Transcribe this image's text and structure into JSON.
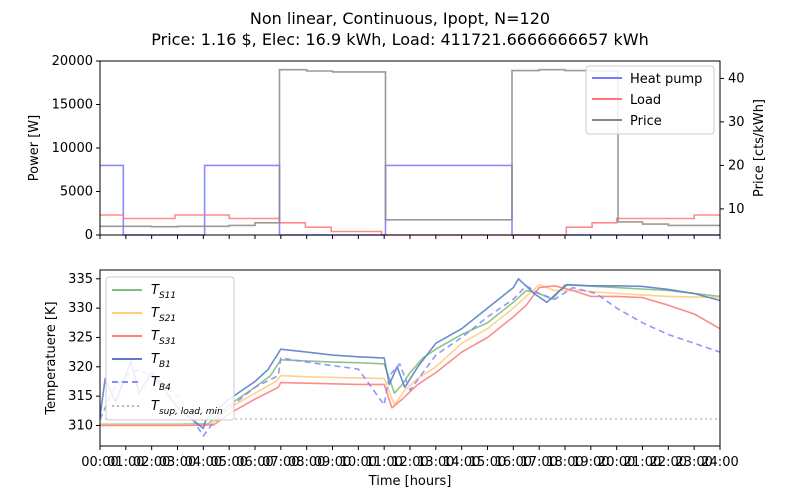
{
  "figure": {
    "title_line1": "Non linear, Continuous, Ipopt, N=120",
    "title_line2": "Price: 1.16 $, Elec: 16.9 kWh, Load: 411721.6666666657 kWh"
  },
  "chart_data": [
    {
      "type": "line",
      "ylabel": "Power [W]",
      "y2label": "Price [cts/kWh]",
      "ylim": [
        0,
        20000
      ],
      "y2lim": [
        4,
        44
      ],
      "xlim": [
        0,
        24
      ],
      "yticks": [
        "0",
        "5000",
        "10000",
        "15000",
        "20000"
      ],
      "y2ticks": [
        "10",
        "20",
        "30",
        "40"
      ],
      "grid": false,
      "legend_position": "top-right",
      "series": [
        {
          "name": "Heat pump",
          "color": "#7777ff",
          "axis": "left",
          "points": [
            [
              0,
              8000
            ],
            [
              0.9,
              8000
            ],
            [
              0.9,
              0
            ],
            [
              4.05,
              0
            ],
            [
              4.05,
              8000
            ],
            [
              6.95,
              8000
            ],
            [
              6.95,
              0
            ],
            [
              11.05,
              0
            ],
            [
              11.05,
              8000
            ],
            [
              15.95,
              8000
            ],
            [
              15.95,
              0
            ],
            [
              24,
              0
            ]
          ]
        },
        {
          "name": "Load",
          "color": "#ff7777",
          "axis": "left",
          "points": [
            [
              0,
              2300
            ],
            [
              0.9,
              2300
            ],
            [
              0.9,
              1900
            ],
            [
              2.9,
              1900
            ],
            [
              2.9,
              2300
            ],
            [
              5.0,
              2300
            ],
            [
              5.0,
              1900
            ],
            [
              6.95,
              1900
            ],
            [
              6.95,
              1400
            ],
            [
              7.95,
              1400
            ],
            [
              7.95,
              900
            ],
            [
              8.95,
              900
            ],
            [
              8.95,
              400
            ],
            [
              10.9,
              400
            ],
            [
              10.9,
              0
            ],
            [
              18.05,
              0
            ],
            [
              18.05,
              900
            ],
            [
              19.05,
              900
            ],
            [
              19.05,
              1400
            ],
            [
              20.0,
              1400
            ],
            [
              20.0,
              1900
            ],
            [
              23.0,
              1900
            ],
            [
              23.0,
              2300
            ],
            [
              24,
              2300
            ]
          ]
        },
        {
          "name": "Price",
          "color": "#888888",
          "axis": "right",
          "points": [
            [
              0,
              6.0
            ],
            [
              2.0,
              6.0
            ],
            [
              2.0,
              5.9
            ],
            [
              3.0,
              5.9
            ],
            [
              3.0,
              6.0
            ],
            [
              5.0,
              6.0
            ],
            [
              5.0,
              6.2
            ],
            [
              6.0,
              6.2
            ],
            [
              6.0,
              6.8
            ],
            [
              6.95,
              6.8
            ],
            [
              6.95,
              42.0
            ],
            [
              8.0,
              42.0
            ],
            [
              8.0,
              41.7
            ],
            [
              9.0,
              41.7
            ],
            [
              9.0,
              41.5
            ],
            [
              11.05,
              41.5
            ],
            [
              11.05,
              7.5
            ],
            [
              15.95,
              7.5
            ],
            [
              15.95,
              41.8
            ],
            [
              17.0,
              41.8
            ],
            [
              17.0,
              42.0
            ],
            [
              18.0,
              42.0
            ],
            [
              18.0,
              41.8
            ],
            [
              19.0,
              41.8
            ],
            [
              19.0,
              41.7
            ],
            [
              20.05,
              41.7
            ],
            [
              20.05,
              7.0
            ],
            [
              21.0,
              7.0
            ],
            [
              21.0,
              6.5
            ],
            [
              22.0,
              6.5
            ],
            [
              22.0,
              6.2
            ],
            [
              24,
              6.2
            ]
          ]
        }
      ]
    },
    {
      "type": "line",
      "xlabel": "Time [hours]",
      "ylabel": "Temperatuere [K]",
      "ylim": [
        306.5,
        336.5
      ],
      "xlim": [
        0,
        24
      ],
      "yticks": [
        "310",
        "315",
        "320",
        "325",
        "330",
        "335"
      ],
      "xticks": [
        "00:00",
        "01:00",
        "02:00",
        "03:00",
        "04:00",
        "05:00",
        "06:00",
        "07:00",
        "08:00",
        "09:00",
        "10:00",
        "11:00",
        "12:00",
        "13:00",
        "14:00",
        "15:00",
        "16:00",
        "17:00",
        "18:00",
        "19:00",
        "20:00",
        "21:00",
        "22:00",
        "23:00",
        "24:00"
      ],
      "grid": false,
      "legend_position": "top-left",
      "series": [
        {
          "name": "T_S11",
          "label_main": "T",
          "label_sub": "S11",
          "color": "#7fbf7f",
          "dash": "solid",
          "points": [
            [
              0,
              310.2
            ],
            [
              3,
              310.2
            ],
            [
              4.2,
              310.3
            ],
            [
              5,
              313.5
            ],
            [
              6,
              316.5
            ],
            [
              6.6,
              318.5
            ],
            [
              7,
              321.2
            ],
            [
              8,
              321
            ],
            [
              9,
              320.8
            ],
            [
              10,
              320.7
            ],
            [
              11,
              320.5
            ],
            [
              11.4,
              315.5
            ],
            [
              11.7,
              317
            ],
            [
              12,
              319
            ],
            [
              12.5,
              321.5
            ],
            [
              13,
              323
            ],
            [
              14,
              325.5
            ],
            [
              15,
              327.5
            ],
            [
              16,
              331
            ],
            [
              16.5,
              333
            ],
            [
              17,
              332.5
            ],
            [
              17.5,
              331.5
            ],
            [
              18,
              334
            ],
            [
              20,
              333.5
            ],
            [
              22,
              333
            ],
            [
              24,
              332
            ]
          ]
        },
        {
          "name": "T_S21",
          "label_main": "T",
          "label_sub": "S21",
          "color": "#ffcc80",
          "dash": "solid",
          "points": [
            [
              0,
              310.1
            ],
            [
              3,
              310.1
            ],
            [
              4.3,
              310.2
            ],
            [
              5,
              313
            ],
            [
              6,
              315.5
            ],
            [
              6.8,
              317.5
            ],
            [
              7,
              318.5
            ],
            [
              8,
              318.3
            ],
            [
              9,
              318.2
            ],
            [
              10,
              318.1
            ],
            [
              11,
              318
            ],
            [
              11.4,
              313.5
            ],
            [
              11.8,
              316
            ],
            [
              12.3,
              318
            ],
            [
              13,
              320
            ],
            [
              14,
              324
            ],
            [
              15,
              326.5
            ],
            [
              16,
              330
            ],
            [
              16.5,
              332
            ],
            [
              17,
              334
            ],
            [
              17.6,
              333
            ],
            [
              18.5,
              333
            ],
            [
              20,
              332.5
            ],
            [
              22,
              332
            ],
            [
              24,
              331.8
            ]
          ]
        },
        {
          "name": "T_S31",
          "label_main": "T",
          "label_sub": "S31",
          "color": "#ff8080",
          "dash": "solid",
          "points": [
            [
              0,
              310
            ],
            [
              3,
              310
            ],
            [
              4.4,
              310.1
            ],
            [
              5,
              312
            ],
            [
              6,
              314.5
            ],
            [
              6.9,
              316.5
            ],
            [
              7,
              317.3
            ],
            [
              8,
              317.2
            ],
            [
              9,
              317.1
            ],
            [
              10,
              317
            ],
            [
              11,
              317
            ],
            [
              11.3,
              313
            ],
            [
              11.7,
              314.5
            ],
            [
              12.3,
              317
            ],
            [
              13,
              319
            ],
            [
              14,
              322.5
            ],
            [
              15,
              325
            ],
            [
              16,
              328.5
            ],
            [
              16.5,
              330.5
            ],
            [
              17,
              333.5
            ],
            [
              17.6,
              333.8
            ],
            [
              18.3,
              333
            ],
            [
              19,
              332
            ],
            [
              20,
              332
            ],
            [
              21,
              331.8
            ],
            [
              22,
              330.5
            ],
            [
              23,
              329
            ],
            [
              24,
              326.5
            ]
          ]
        },
        {
          "name": "T_B1",
          "label_main": "T",
          "label_sub": "B1",
          "color": "#5b7fc7",
          "dash": "solid",
          "points": [
            [
              0,
              311.5
            ],
            [
              0.2,
              318
            ],
            [
              0.6,
              314
            ],
            [
              1.2,
              321
            ],
            [
              1.5,
              315.5
            ],
            [
              2,
              319
            ],
            [
              2.5,
              316
            ],
            [
              3,
              313
            ],
            [
              4,
              309.5
            ],
            [
              4.1,
              311
            ],
            [
              5,
              314.5
            ],
            [
              6,
              317.5
            ],
            [
              6.5,
              319.5
            ],
            [
              7,
              323
            ],
            [
              8,
              322.5
            ],
            [
              9,
              322
            ],
            [
              10,
              321.7
            ],
            [
              11,
              321.5
            ],
            [
              11.2,
              317
            ],
            [
              11.5,
              320
            ],
            [
              11.8,
              316.5
            ],
            [
              12.3,
              320
            ],
            [
              13,
              324
            ],
            [
              14,
              326.5
            ],
            [
              15,
              330
            ],
            [
              16,
              333.5
            ],
            [
              16.2,
              335
            ],
            [
              16.8,
              332.5
            ],
            [
              17.3,
              331
            ],
            [
              17.8,
              333
            ],
            [
              18.1,
              334
            ],
            [
              19,
              333.8
            ],
            [
              20,
              333.8
            ],
            [
              21,
              333.7
            ],
            [
              22,
              333.2
            ],
            [
              23,
              332.5
            ],
            [
              24,
              331.3
            ]
          ]
        },
        {
          "name": "T_B4",
          "label_main": "T",
          "label_sub": "B4",
          "color": "#8888ff",
          "dash": "dashed",
          "points": [
            [
              0,
              311
            ],
            [
              0.5,
              316
            ],
            [
              1.0,
              318.5
            ],
            [
              1.5,
              319.5
            ],
            [
              2.2,
              318
            ],
            [
              3,
              315
            ],
            [
              3.6,
              311
            ],
            [
              4,
              308.2
            ],
            [
              4.3,
              310
            ],
            [
              5,
              313
            ],
            [
              6,
              316.5
            ],
            [
              6.9,
              318.5
            ],
            [
              7,
              321.5
            ],
            [
              8,
              320.8
            ],
            [
              9,
              320.2
            ],
            [
              10,
              319.6
            ],
            [
              11,
              313.5
            ],
            [
              11.2,
              318.5
            ],
            [
              11.6,
              320.5
            ],
            [
              12.0,
              316
            ],
            [
              12.5,
              319
            ],
            [
              13,
              322
            ],
            [
              14,
              325
            ],
            [
              15,
              328.5
            ],
            [
              16,
              331.5
            ],
            [
              16.5,
              333.8
            ],
            [
              17,
              332.5
            ],
            [
              17.6,
              331.5
            ],
            [
              18.3,
              333.5
            ],
            [
              19.2,
              332.5
            ],
            [
              20,
              330
            ],
            [
              21,
              327.5
            ],
            [
              22,
              325.5
            ],
            [
              23,
              324
            ],
            [
              24,
              322.5
            ]
          ]
        },
        {
          "name": "T_sup,load,min",
          "label_main": "T",
          "label_sub": "sup, load, min",
          "color": "#bbbbbb",
          "dash": "dotted",
          "points": [
            [
              0,
              311.1
            ],
            [
              24,
              311.1
            ]
          ]
        }
      ]
    }
  ]
}
